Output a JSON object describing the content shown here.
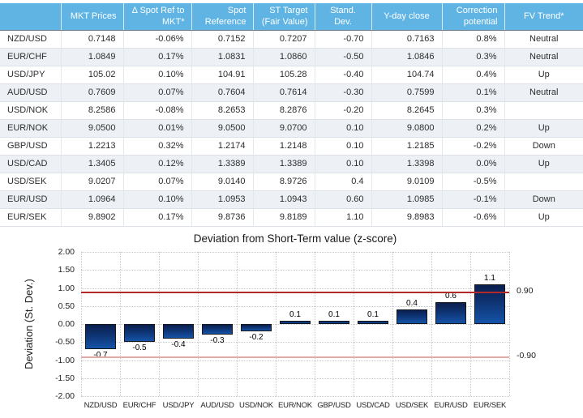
{
  "table": {
    "columns": [
      {
        "label": "",
        "align": "left"
      },
      {
        "label": "MKT Prices",
        "align": "right"
      },
      {
        "label": "Δ Spot Ref to MKT*",
        "align": "right"
      },
      {
        "label": "Spot Reference",
        "align": "right"
      },
      {
        "label": "ST Target (Fair Value)",
        "align": "right"
      },
      {
        "label": "Stand. Dev.",
        "align": "center"
      },
      {
        "label": "Y-day close",
        "align": "center"
      },
      {
        "label": "Correction potential",
        "align": "right"
      },
      {
        "label": "FV Trend*",
        "align": "center"
      }
    ],
    "rows": [
      [
        "NZD/USD",
        "0.7148",
        "-0.06%",
        "0.7152",
        "0.7207",
        "-0.70",
        "0.7163",
        "0.8%",
        "Neutral"
      ],
      [
        "EUR/CHF",
        "1.0849",
        "0.17%",
        "1.0831",
        "1.0860",
        "-0.50",
        "1.0846",
        "0.3%",
        "Neutral"
      ],
      [
        "USD/JPY",
        "105.02",
        "0.10%",
        "104.91",
        "105.28",
        "-0.40",
        "104.74",
        "0.4%",
        "Up"
      ],
      [
        "AUD/USD",
        "0.7609",
        "0.07%",
        "0.7604",
        "0.7614",
        "-0.30",
        "0.7599",
        "0.1%",
        "Neutral"
      ],
      [
        "USD/NOK",
        "8.2586",
        "-0.08%",
        "8.2653",
        "8.2876",
        "-0.20",
        "8.2645",
        "0.3%",
        ""
      ],
      [
        "EUR/NOK",
        "9.0500",
        "0.01%",
        "9.0500",
        "9.0700",
        "0.10",
        "9.0800",
        "0.2%",
        "Up"
      ],
      [
        "GBP/USD",
        "1.2213",
        "0.32%",
        "1.2174",
        "1.2148",
        "0.10",
        "1.2185",
        "-0.2%",
        "Down"
      ],
      [
        "USD/CAD",
        "1.3405",
        "0.12%",
        "1.3389",
        "1.3389",
        "0.10",
        "1.3398",
        "0.0%",
        "Up"
      ],
      [
        "USD/SEK",
        "9.0207",
        "0.07%",
        "9.0140",
        "8.9726",
        "0.4",
        "9.0109",
        "-0.5%",
        ""
      ],
      [
        "EUR/USD",
        "1.0964",
        "0.10%",
        "1.0953",
        "1.0943",
        "0.60",
        "1.0985",
        "-0.1%",
        "Down"
      ],
      [
        "EUR/SEK",
        "9.8902",
        "0.17%",
        "9.8736",
        "9.8189",
        "1.10",
        "9.8983",
        "-0.6%",
        "Up"
      ]
    ]
  },
  "chart_data": {
    "type": "bar",
    "title": "Deviation from Short-Term value (z-score)",
    "xlabel": "",
    "ylabel": "Deviation (St. Dev.)",
    "categories": [
      "NZD/USD",
      "EUR/CHF",
      "USD/JPY",
      "AUD/USD",
      "USD/NOK",
      "EUR/NOK",
      "GBP/USD",
      "USD/CAD",
      "USD/SEK",
      "EUR/USD",
      "EUR/SEK"
    ],
    "values": [
      -0.7,
      -0.5,
      -0.4,
      -0.3,
      -0.2,
      0.1,
      0.1,
      0.1,
      0.4,
      0.6,
      1.1
    ],
    "value_labels": [
      "-0.7",
      "-0.5",
      "-0.4",
      "-0.3",
      "-0.2",
      "0.1",
      "0.1",
      "0.1",
      "0.4",
      "0.6",
      "1.1"
    ],
    "ylim": [
      -2.0,
      2.0
    ],
    "ytick_step": 0.5,
    "grid": true,
    "legend": "none",
    "thresholds": [
      {
        "value": 0.9,
        "label": "0.90",
        "color": "#b22a2a"
      },
      {
        "value": -0.9,
        "label": "-0.90",
        "color": "#e4a9a9"
      }
    ]
  },
  "colors": {
    "header_bg": "#5fb4e4",
    "header_text": "#ffffff",
    "pair_link": "#3e7ca9",
    "row_alt_bg": "#edf1f6",
    "bar_top": "#0a1e4e",
    "bar_bottom": "#1553a8",
    "threshold_upper": "#b22a2a",
    "threshold_lower": "#e4a9a9"
  }
}
